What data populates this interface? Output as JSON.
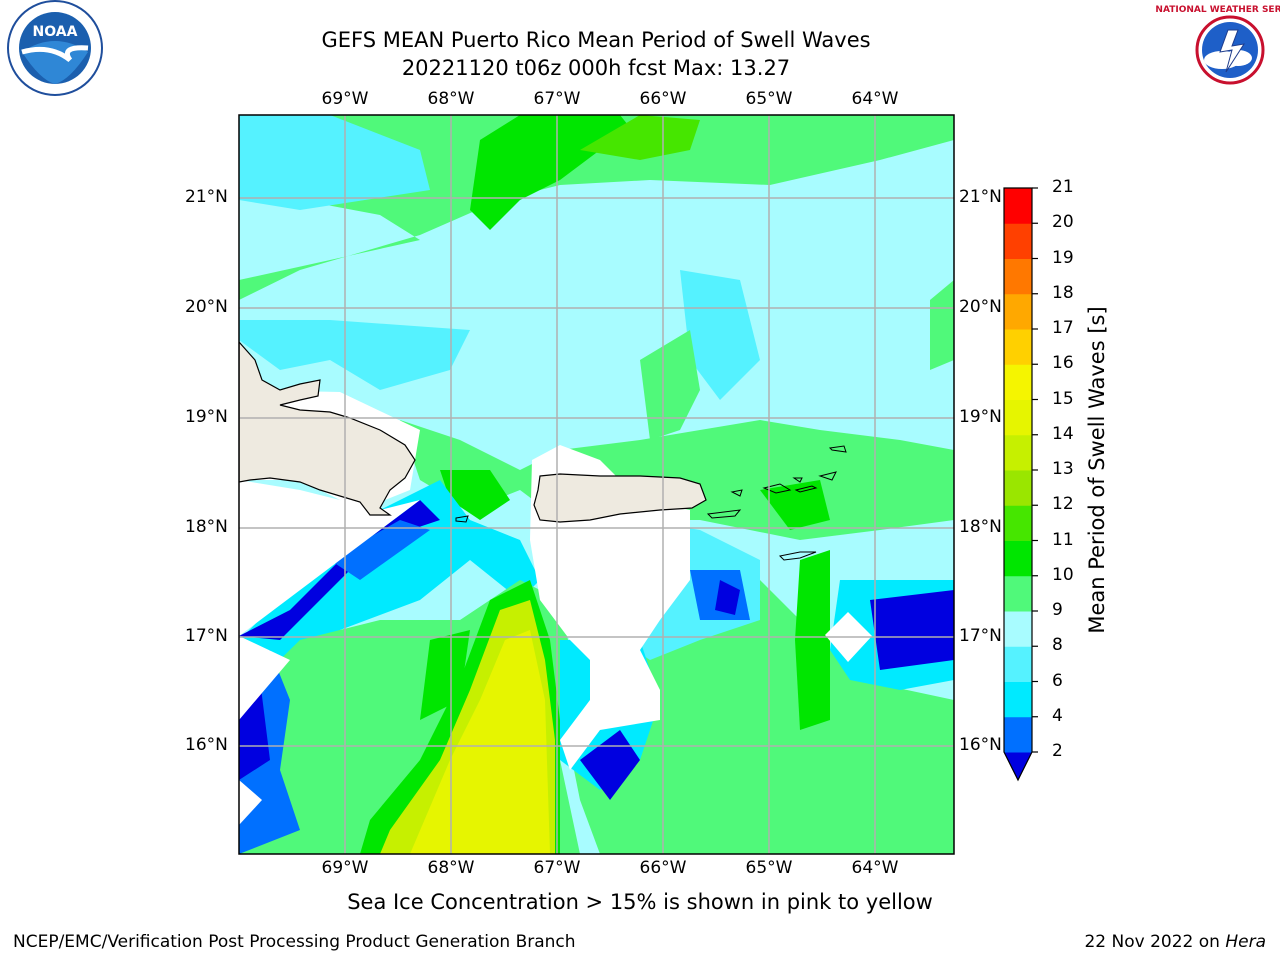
{
  "title_line1": "GEFS MEAN Puerto Rico Mean Period of Swell Waves",
  "title_line2": "20221120 t06z 000h fcst   Max: 13.27",
  "lon_labels": [
    "69°W",
    "68°W",
    "67°W",
    "66°W",
    "65°W",
    "64°W"
  ],
  "lat_labels": [
    "21°N",
    "20°N",
    "19°N",
    "18°N",
    "17°N",
    "16°N"
  ],
  "colorbar": {
    "label": "Mean Period of Swell Waves [s]",
    "ticks": [
      "21",
      "20",
      "19",
      "18",
      "17",
      "16",
      "15",
      "14",
      "13",
      "12",
      "11",
      "10",
      "9",
      "8",
      "6",
      "4",
      "2"
    ],
    "colors": [
      "#0000e0",
      "#0070ff",
      "#00eaff",
      "#55f2ff",
      "#a8fcff",
      "#50f97a",
      "#00e600",
      "#46e600",
      "#9ae600",
      "#c6f000",
      "#e6f500",
      "#f5f500",
      "#ffd000",
      "#ffa800",
      "#ff7800",
      "#ff4000",
      "#ff0000"
    ]
  },
  "map": {
    "lon_range": [
      -70.0,
      -63.25
    ],
    "lat_range": [
      15.0,
      21.75
    ],
    "ocean_color": "#a8fcff",
    "land_color": "#eeeae0",
    "grid": true
  },
  "note": "Sea Ice Concentration > 15% is shown in pink to yellow",
  "footer_left": "NCEP/EMC/Verification Post Processing Product Generation Branch",
  "footer_date": "22 Nov 2022 on ",
  "footer_host": "Hera",
  "logos": {
    "left": "noaa-logo",
    "right": "nws-logo",
    "left_text": "NOAA",
    "right_text": "NATIONAL WEATHER SERVICE"
  }
}
